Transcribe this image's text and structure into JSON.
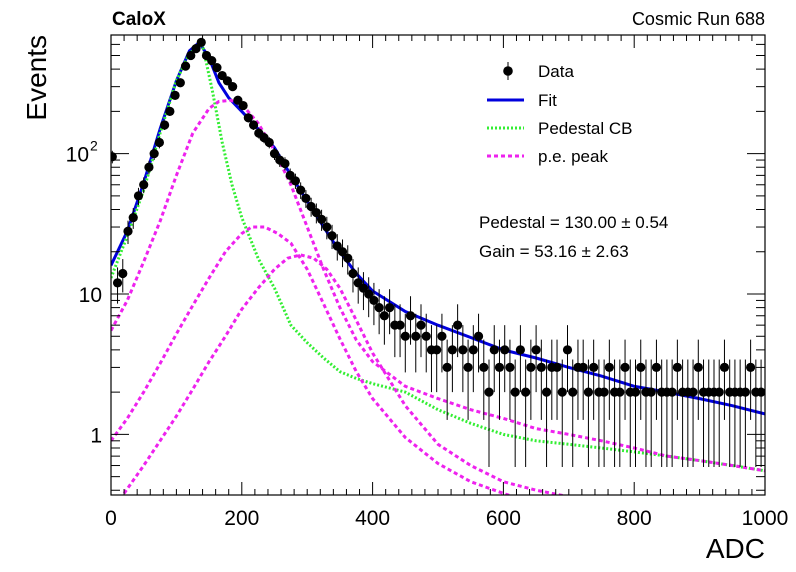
{
  "chart_data": {
    "type": "scatter",
    "title_left": "CaloX",
    "title_right": "Cosmic Run 688",
    "xlabel": "ADC",
    "ylabel": "Events",
    "xlim": [
      0,
      1000
    ],
    "ylim": [
      0.37,
      700
    ],
    "yscale": "log",
    "x_ticks": [
      "0",
      "200",
      "400",
      "600",
      "800",
      "1000"
    ],
    "y_ticks": [
      {
        "value": 1,
        "label": "1"
      },
      {
        "value": 10,
        "label": "10"
      },
      {
        "value": 100,
        "label": "10",
        "sup": "2"
      }
    ],
    "legend_position": "top-right",
    "legend": [
      {
        "label": "Data",
        "style": "marker"
      },
      {
        "label": "Fit",
        "style": "line",
        "color": "#0000dd"
      },
      {
        "label": "Pedestal CB",
        "style": "dotted",
        "color": "#33ee33"
      },
      {
        "label": "p.e. peak",
        "style": "dashed",
        "color": "#ee22ee"
      }
    ],
    "annotations": [
      "Pedestal = 130.00 ± 0.54",
      "Gain = 53.16 ± 2.63"
    ],
    "fit_params": {
      "pedestal": 130.0,
      "gain": 53.16
    },
    "data_points": {
      "x": [
        2,
        10,
        18,
        26,
        34,
        42,
        50,
        58,
        66,
        74,
        82,
        90,
        98,
        106,
        114,
        122,
        130,
        138,
        146,
        154,
        162,
        170,
        178,
        186,
        194,
        202,
        210,
        218,
        226,
        234,
        242,
        250,
        258,
        266,
        274,
        282,
        290,
        298,
        306,
        314,
        322,
        330,
        338,
        346,
        354,
        362,
        370,
        378,
        386,
        394,
        402,
        410,
        418,
        426,
        434,
        442,
        450,
        458,
        466,
        474,
        482,
        490,
        498,
        506,
        514,
        522,
        530,
        538,
        546,
        554,
        562,
        570,
        578,
        586,
        594,
        602,
        610,
        618,
        626,
        634,
        642,
        650,
        658,
        666,
        674,
        682,
        690,
        698,
        706,
        714,
        722,
        730,
        738,
        746,
        754,
        762,
        770,
        778,
        786,
        794,
        802,
        810,
        818,
        826,
        834,
        842,
        850,
        858,
        866,
        874,
        882,
        890,
        898,
        906,
        914,
        922,
        930,
        938,
        946,
        954,
        962,
        970,
        978,
        986,
        994
      ],
      "y": [
        95,
        12,
        14,
        28,
        35,
        50,
        60,
        80,
        100,
        120,
        160,
        200,
        260,
        320,
        420,
        500,
        560,
        620,
        500,
        460,
        410,
        360,
        330,
        300,
        240,
        220,
        180,
        160,
        140,
        130,
        120,
        100,
        90,
        85,
        70,
        64,
        55,
        48,
        42,
        38,
        34,
        30,
        26,
        22,
        20,
        18,
        14,
        12,
        11,
        10,
        9,
        8,
        7,
        8,
        6,
        6,
        5,
        7,
        5,
        6,
        5,
        4,
        4,
        5,
        3,
        4,
        6,
        4,
        3,
        4,
        5,
        3,
        2,
        4,
        3,
        4,
        3,
        2,
        4,
        2,
        3,
        4,
        3,
        2,
        3,
        3,
        2,
        4,
        2,
        3,
        3,
        2,
        3,
        2,
        2,
        3,
        2,
        2,
        3,
        2,
        2,
        3,
        2,
        2,
        3,
        2,
        2,
        2,
        3,
        2,
        2,
        2,
        3,
        2,
        2,
        2,
        2,
        3,
        2,
        2,
        2,
        2,
        3,
        2,
        2
      ]
    },
    "series": [
      {
        "name": "Fit",
        "style": "solid",
        "color": "#0000dd",
        "x": [
          0,
          25,
          50,
          75,
          100,
          120,
          135,
          150,
          165,
          180,
          200,
          225,
          250,
          275,
          300,
          325,
          350,
          375,
          400,
          450,
          500,
          550,
          600,
          650,
          700,
          750,
          800,
          850,
          900,
          950,
          1000
        ],
        "y": [
          16,
          28,
          62,
          150,
          330,
          540,
          620,
          480,
          320,
          250,
          200,
          150,
          110,
          70,
          46,
          30,
          20,
          14,
          10.5,
          7.5,
          6,
          4.9,
          4,
          3.5,
          3,
          2.6,
          2.2,
          2,
          1.8,
          1.6,
          1.4
        ]
      },
      {
        "name": "Pedestal CB",
        "style": "dotted",
        "color": "#33ee33",
        "x": [
          0,
          25,
          50,
          75,
          100,
          120,
          140,
          155,
          170,
          185,
          200,
          225,
          250,
          275,
          300,
          325,
          350,
          375,
          400,
          450,
          500,
          550,
          600,
          650,
          700,
          750,
          800,
          850,
          900,
          950,
          1000
        ],
        "y": [
          13,
          26,
          55,
          140,
          330,
          520,
          590,
          280,
          120,
          60,
          35,
          18,
          11,
          6,
          4.5,
          3.5,
          2.8,
          2.5,
          2.3,
          2,
          1.5,
          1.2,
          1,
          0.9,
          0.85,
          0.8,
          0.75,
          0.7,
          0.65,
          0.6,
          0.55
        ]
      },
      {
        "name": "p.e. peak",
        "style": "dashed",
        "color": "#ee22ee",
        "x": [
          0,
          25,
          50,
          75,
          100,
          125,
          150,
          165,
          183,
          200,
          225,
          250,
          275,
          300,
          325,
          350,
          375,
          400,
          450,
          500,
          550,
          600,
          650,
          700,
          750,
          800,
          850,
          900,
          950,
          1000
        ],
        "y": [
          5.5,
          9,
          17,
          33,
          70,
          140,
          210,
          235,
          240,
          225,
          165,
          105,
          60,
          30,
          15,
          8,
          4.7,
          3.3,
          2.2,
          1.8,
          1.5,
          1.3,
          1.1,
          1,
          0.9,
          0.8,
          0.7,
          0.65,
          0.6,
          0.55
        ]
      },
      {
        "name": "p.e. peak 2",
        "style": "dashed",
        "color": "#ee22ee",
        "x": [
          0,
          25,
          50,
          75,
          100,
          125,
          150,
          175,
          200,
          215,
          235,
          255,
          275,
          300,
          325,
          350,
          375,
          400,
          450,
          500,
          550,
          600,
          650,
          700,
          750,
          800
        ],
        "y": [
          0.9,
          1.3,
          2,
          3.2,
          5.2,
          8.3,
          13,
          20,
          27,
          30,
          30,
          27,
          23,
          15,
          8.5,
          4.8,
          2.8,
          1.8,
          0.95,
          0.62,
          0.46,
          0.38,
          0.32,
          0.3,
          0.28,
          0.27
        ]
      },
      {
        "name": "p.e. peak 3",
        "style": "dashed",
        "color": "#ee22ee",
        "x": [
          20,
          50,
          75,
          100,
          125,
          150,
          175,
          200,
          225,
          250,
          270,
          290,
          310,
          330,
          350,
          375,
          400,
          450,
          500,
          550,
          600,
          650,
          700
        ],
        "y": [
          0.38,
          0.6,
          0.9,
          1.35,
          2.1,
          3.3,
          5,
          7.8,
          11,
          15,
          18,
          19,
          18,
          15,
          11,
          6.5,
          3.8,
          1.6,
          0.85,
          0.6,
          0.46,
          0.4,
          0.36
        ]
      }
    ]
  }
}
